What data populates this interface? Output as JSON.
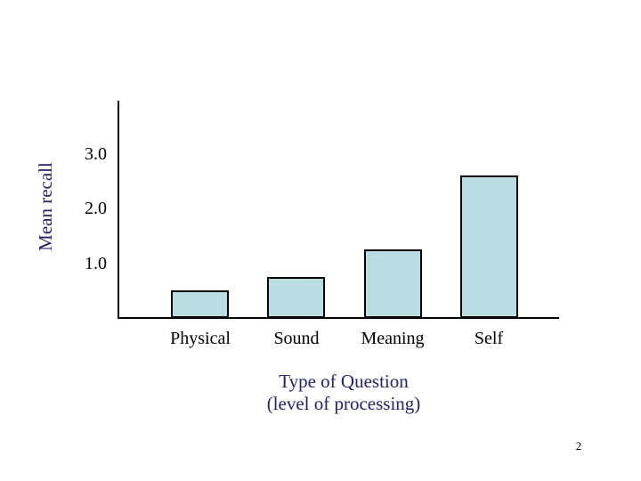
{
  "page": {
    "number": "2",
    "background_color": "#ffffff"
  },
  "chart_data": {
    "type": "bar",
    "categories": [
      "Physical",
      "Sound",
      "Meaning",
      "Self"
    ],
    "values": [
      0.5,
      0.75,
      1.25,
      2.6
    ],
    "title": "",
    "xlabel": "Type of Question",
    "xlabel_line2": "(level of processing)",
    "ylabel": "Mean recall",
    "ylim": [
      0,
      4.0
    ],
    "yticks": [
      1.0,
      2.0,
      3.0
    ],
    "ytick_labels": [
      "1.0",
      "2.0",
      "3.0"
    ],
    "grid": false,
    "legend": false,
    "colors": {
      "bar_fill": "#b9dde1",
      "bar_border": "#000000",
      "axis_line": "#000000",
      "tick_label": "#000000",
      "category_label": "#000000",
      "axis_title": "#232366",
      "page_number": "#000000"
    }
  }
}
